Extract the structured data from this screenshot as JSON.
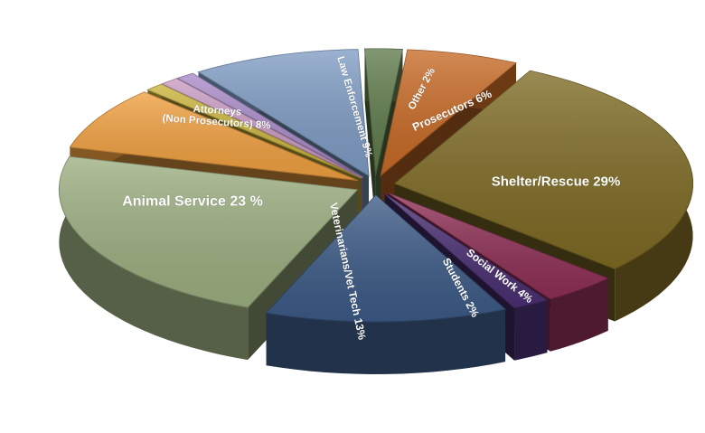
{
  "chart_data": {
    "type": "pie",
    "style": "3d-exploded",
    "title": "",
    "legend": "none",
    "slices": [
      {
        "label": "Shelter/Rescue 29%",
        "name": "Shelter/Rescue",
        "value": 29,
        "color": "#7d6a23"
      },
      {
        "label": "Social Work 4%",
        "name": "Social Work",
        "value": 4,
        "color": "#8e2f55"
      },
      {
        "label": "Students 2%",
        "name": "Students",
        "value": 2,
        "color": "#4a2f72"
      },
      {
        "label": "Veterinarians/Vet Tech 13%",
        "name": "Veterinarians/Vet Tech",
        "value": 13,
        "color": "#3c5a86"
      },
      {
        "label": "Animal Service 23 %",
        "name": "Animal Service",
        "value": 23,
        "color": "#9caf80"
      },
      {
        "label": "Attorneys\n(Non Prosecutors) 8%",
        "name": "Attorneys (Non Prosecutors)",
        "value": 8,
        "color": "#f0a040"
      },
      {
        "label": "",
        "name": "",
        "value": 1,
        "color": "#c9b33a"
      },
      {
        "label": "",
        "name": "",
        "value": 1,
        "color": "#c99ac2"
      },
      {
        "label": "",
        "name": "",
        "value": 1,
        "color": "#a88ac8"
      },
      {
        "label": "Law Enforcement 9%",
        "name": "Law Enforcement",
        "value": 9,
        "color": "#7f9cc4"
      },
      {
        "label": "Other 2%",
        "name": "Other",
        "value": 2,
        "color": "#5e7a4a"
      },
      {
        "label": "Prosecutors 6%",
        "name": "Prosecutors",
        "value": 6,
        "color": "#c76a25"
      }
    ]
  }
}
